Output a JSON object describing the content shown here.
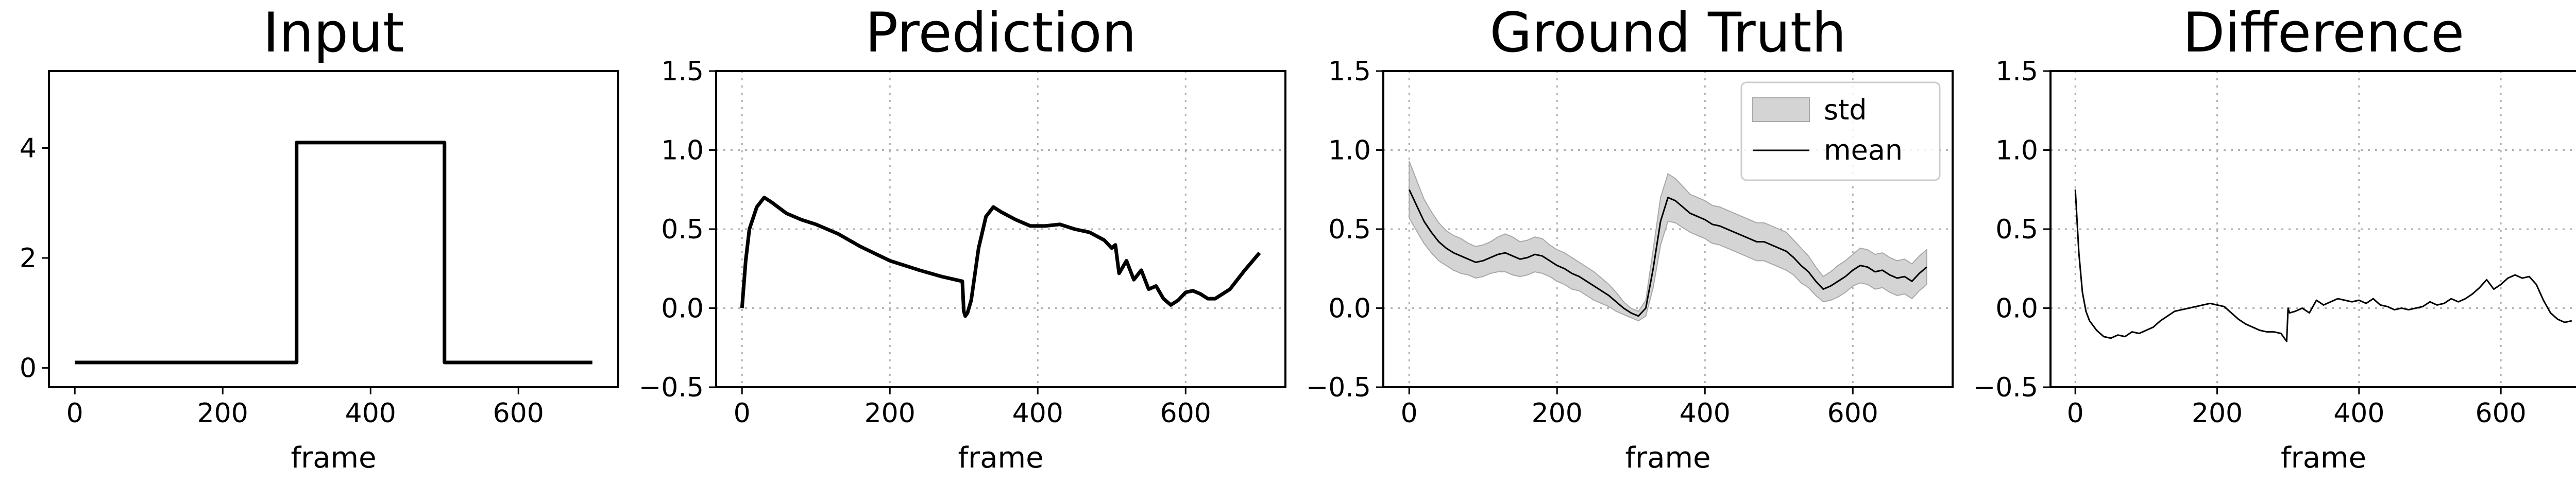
{
  "chart_data": [
    {
      "type": "line",
      "title": "Input",
      "xlabel": "frame",
      "ylabel": "",
      "xlim": [
        -35,
        735
      ],
      "ylim": [
        -0.35,
        5.4
      ],
      "xticks": [
        0,
        200,
        400,
        600
      ],
      "yticks": [
        0,
        2,
        4
      ],
      "grid": false,
      "series": [
        {
          "style": "thick",
          "x": [
            0,
            300,
            300,
            500,
            500,
            700
          ],
          "y": [
            0.1,
            0.1,
            4.1,
            4.1,
            0.1,
            0.1
          ]
        }
      ]
    },
    {
      "type": "line",
      "title": "Prediction",
      "xlabel": "frame",
      "ylabel": "",
      "xlim": [
        -35,
        735
      ],
      "ylim": [
        -0.5,
        1.5
      ],
      "xticks": [
        0,
        200,
        400,
        600
      ],
      "yticks": [
        -0.5,
        0.0,
        0.5,
        1.0,
        1.5
      ],
      "grid": true,
      "series": [
        {
          "style": "thick",
          "x": [
            0,
            5,
            10,
            20,
            30,
            40,
            60,
            80,
            100,
            130,
            160,
            200,
            240,
            270,
            298,
            300,
            302,
            305,
            310,
            320,
            330,
            340,
            350,
            370,
            390,
            410,
            430,
            450,
            470,
            490,
            500,
            505,
            510,
            520,
            530,
            540,
            550,
            560,
            570,
            580,
            590,
            600,
            610,
            620,
            630,
            640,
            660,
            680,
            700
          ],
          "y": [
            0.0,
            0.3,
            0.5,
            0.64,
            0.7,
            0.67,
            0.6,
            0.56,
            0.53,
            0.47,
            0.39,
            0.3,
            0.24,
            0.2,
            0.17,
            -0.02,
            -0.05,
            -0.03,
            0.05,
            0.38,
            0.58,
            0.64,
            0.61,
            0.56,
            0.52,
            0.52,
            0.53,
            0.5,
            0.48,
            0.43,
            0.38,
            0.4,
            0.22,
            0.3,
            0.18,
            0.24,
            0.12,
            0.14,
            0.06,
            0.02,
            0.05,
            0.1,
            0.11,
            0.09,
            0.06,
            0.06,
            0.12,
            0.24,
            0.35
          ]
        }
      ]
    },
    {
      "type": "line",
      "title": "Ground Truth",
      "xlabel": "frame",
      "ylabel": "",
      "xlim": [
        -35,
        735
      ],
      "ylim": [
        -0.5,
        1.5
      ],
      "xticks": [
        0,
        200,
        400,
        600
      ],
      "yticks": [
        -0.5,
        0.0,
        0.5,
        1.0,
        1.5
      ],
      "grid": true,
      "legend": {
        "position": "top-right",
        "entries": [
          "std",
          "mean"
        ]
      },
      "series": [
        {
          "name": "mean",
          "style": "thin",
          "x": [
            0,
            10,
            20,
            30,
            40,
            50,
            60,
            70,
            80,
            90,
            100,
            110,
            120,
            130,
            140,
            150,
            160,
            170,
            180,
            190,
            200,
            210,
            220,
            230,
            240,
            250,
            260,
            270,
            280,
            290,
            300,
            310,
            320,
            330,
            340,
            350,
            360,
            370,
            380,
            390,
            400,
            410,
            420,
            430,
            440,
            450,
            460,
            470,
            480,
            490,
            500,
            510,
            520,
            530,
            540,
            550,
            560,
            570,
            580,
            590,
            600,
            610,
            620,
            630,
            640,
            650,
            660,
            670,
            680,
            690,
            700
          ],
          "y": [
            0.75,
            0.65,
            0.55,
            0.48,
            0.42,
            0.38,
            0.35,
            0.33,
            0.31,
            0.29,
            0.3,
            0.32,
            0.34,
            0.35,
            0.33,
            0.31,
            0.32,
            0.34,
            0.33,
            0.3,
            0.27,
            0.25,
            0.22,
            0.2,
            0.17,
            0.14,
            0.11,
            0.08,
            0.04,
            0.0,
            -0.03,
            -0.05,
            0.0,
            0.25,
            0.55,
            0.7,
            0.68,
            0.64,
            0.6,
            0.58,
            0.56,
            0.53,
            0.52,
            0.5,
            0.48,
            0.46,
            0.44,
            0.42,
            0.42,
            0.4,
            0.38,
            0.36,
            0.32,
            0.27,
            0.23,
            0.17,
            0.12,
            0.14,
            0.17,
            0.2,
            0.24,
            0.27,
            0.26,
            0.23,
            0.24,
            0.21,
            0.19,
            0.2,
            0.17,
            0.22,
            0.26
          ]
        }
      ],
      "std_band": {
        "name": "std",
        "half_width": [
          0.18,
          0.16,
          0.14,
          0.13,
          0.12,
          0.11,
          0.11,
          0.11,
          0.1,
          0.1,
          0.1,
          0.1,
          0.11,
          0.12,
          0.12,
          0.11,
          0.11,
          0.11,
          0.11,
          0.1,
          0.1,
          0.1,
          0.1,
          0.09,
          0.09,
          0.09,
          0.08,
          0.07,
          0.06,
          0.04,
          0.03,
          0.03,
          0.05,
          0.12,
          0.15,
          0.15,
          0.14,
          0.13,
          0.12,
          0.12,
          0.12,
          0.12,
          0.12,
          0.12,
          0.12,
          0.12,
          0.12,
          0.12,
          0.12,
          0.12,
          0.12,
          0.12,
          0.11,
          0.11,
          0.1,
          0.09,
          0.08,
          0.09,
          0.1,
          0.1,
          0.1,
          0.11,
          0.11,
          0.11,
          0.11,
          0.11,
          0.11,
          0.11,
          0.11,
          0.11,
          0.11
        ]
      }
    },
    {
      "type": "line",
      "title": "Difference",
      "xlabel": "frame",
      "ylabel": "",
      "xlim": [
        -35,
        735
      ],
      "ylim": [
        -0.5,
        1.5
      ],
      "xticks": [
        0,
        200,
        400,
        600
      ],
      "yticks": [
        -0.5,
        0.0,
        0.5,
        1.0,
        1.5
      ],
      "grid": true,
      "series": [
        {
          "style": "thin",
          "x": [
            0,
            5,
            10,
            15,
            20,
            30,
            40,
            50,
            60,
            70,
            80,
            90,
            100,
            110,
            120,
            130,
            140,
            150,
            160,
            170,
            180,
            190,
            200,
            210,
            220,
            230,
            240,
            250,
            260,
            270,
            280,
            290,
            298,
            300,
            302,
            310,
            320,
            330,
            340,
            350,
            360,
            370,
            380,
            390,
            400,
            410,
            420,
            430,
            440,
            450,
            460,
            470,
            480,
            490,
            500,
            510,
            520,
            530,
            540,
            550,
            560,
            570,
            580,
            590,
            600,
            610,
            620,
            630,
            640,
            650,
            660,
            670,
            680,
            690,
            700
          ],
          "y": [
            0.75,
            0.35,
            0.1,
            -0.02,
            -0.08,
            -0.14,
            -0.18,
            -0.19,
            -0.17,
            -0.18,
            -0.15,
            -0.16,
            -0.14,
            -0.12,
            -0.08,
            -0.05,
            -0.02,
            -0.01,
            0.0,
            0.01,
            0.02,
            0.03,
            0.02,
            0.01,
            -0.03,
            -0.07,
            -0.1,
            -0.12,
            -0.14,
            -0.15,
            -0.15,
            -0.16,
            -0.21,
            0.0,
            -0.03,
            -0.02,
            0.0,
            -0.03,
            0.05,
            0.02,
            0.04,
            0.06,
            0.05,
            0.04,
            0.05,
            0.03,
            0.06,
            0.02,
            0.01,
            -0.01,
            0.0,
            -0.01,
            0.0,
            0.01,
            0.04,
            0.02,
            0.03,
            0.06,
            0.04,
            0.06,
            0.09,
            0.13,
            0.18,
            0.12,
            0.15,
            0.19,
            0.21,
            0.19,
            0.2,
            0.15,
            0.05,
            -0.03,
            -0.07,
            -0.09,
            -0.08
          ]
        }
      ]
    }
  ]
}
